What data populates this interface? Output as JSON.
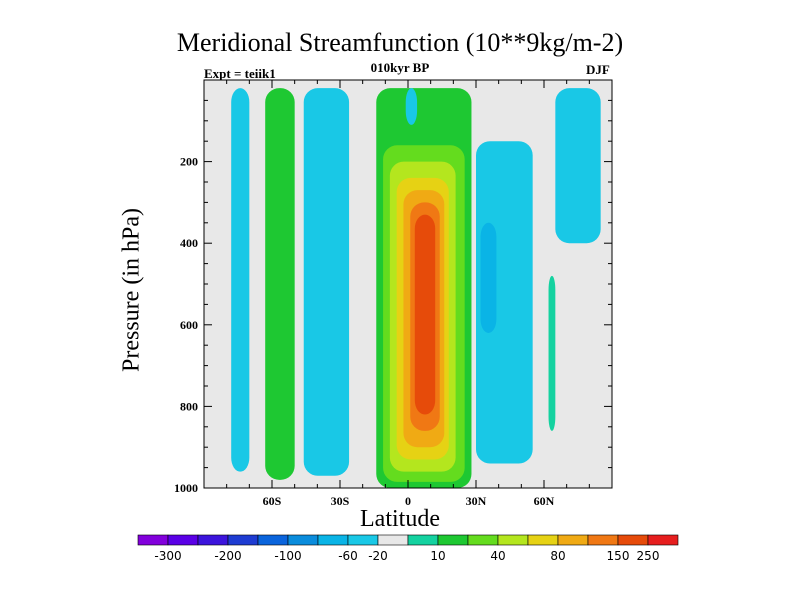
{
  "chart_data": {
    "type": "contour",
    "title": "Meridional Streamfunction (10**9kg/m-2)",
    "subtitle": "010kyr BP",
    "left_annotation": "Expt = teiik1",
    "right_annotation": "DJF",
    "xlabel": "Latitude",
    "ylabel": "Pressure (in hPa)",
    "x_ticks": [
      "60S",
      "30S",
      "0",
      "30N",
      "60N"
    ],
    "x_tick_values": [
      -60,
      -30,
      0,
      30,
      60
    ],
    "xlim": [
      -90,
      90
    ],
    "y_ticks": [
      200,
      400,
      600,
      800,
      1000
    ],
    "ylim": [
      0,
      1000
    ],
    "y_reversed": true,
    "colorbar": {
      "labels": [
        "-300",
        "-200",
        "-100",
        "-60",
        "-20",
        "10",
        "40",
        "80",
        "150",
        "250"
      ],
      "colors": [
        "#8200dc",
        "#5a00e6",
        "#3c14dc",
        "#1e3cd2",
        "#0a64dc",
        "#0a8cdc",
        "#0ab4e6",
        "#19c8e6",
        "#e8e8e8",
        "#14d2a0",
        "#1ec832",
        "#64dc1e",
        "#b4e61e",
        "#e6d214",
        "#f0aa14",
        "#f07814",
        "#e64b0a",
        "#e61e1e"
      ]
    },
    "features": [
      {
        "name": "negative cell near 70S",
        "min_level": "-20",
        "lat_range": [
          -78,
          -70
        ],
        "p_range": [
          20,
          960
        ]
      },
      {
        "name": "positive cell near 55S",
        "max_level": "40",
        "lat_range": [
          -63,
          -50
        ],
        "p_range": [
          20,
          980
        ]
      },
      {
        "name": "negative cell near 40S",
        "min_level": "-20",
        "lat_range": [
          -46,
          -26
        ],
        "p_range": [
          20,
          970
        ]
      },
      {
        "name": "Hadley cell (positive)",
        "max_level": "250",
        "lat_range": [
          -14,
          28
        ],
        "p_range": [
          20,
          1000
        ],
        "core_lat": 8,
        "core_p": 550
      },
      {
        "name": "negative cell near 40N",
        "min_level": "-60",
        "lat_range": [
          30,
          55
        ],
        "p_range": [
          150,
          940
        ]
      },
      {
        "name": "negative cell near 75N",
        "min_level": "-20",
        "lat_range": [
          65,
          85
        ],
        "p_range": [
          20,
          400
        ]
      }
    ]
  }
}
